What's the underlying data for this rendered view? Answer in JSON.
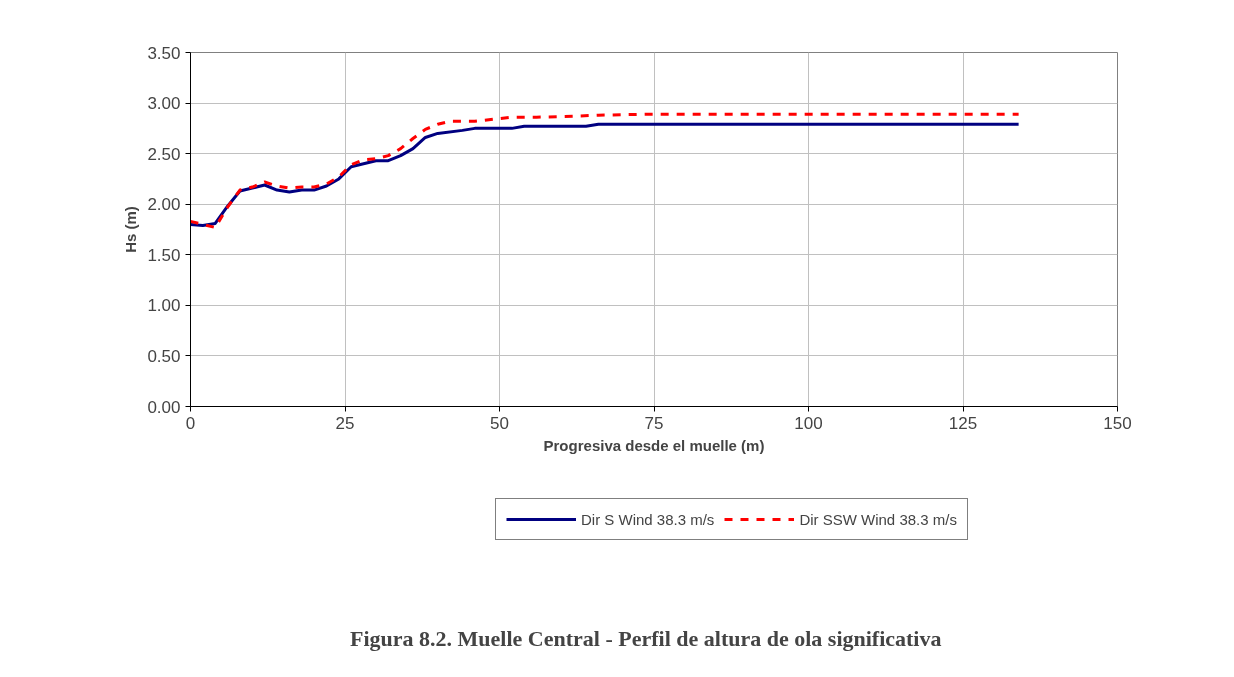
{
  "chart_data": {
    "type": "line",
    "xlabel": "Progresiva desde el muelle (m)",
    "ylabel": "Hs (m)",
    "xlim": [
      0,
      150
    ],
    "xticks": [
      0,
      25,
      50,
      75,
      100,
      125,
      150
    ],
    "ylim": [
      0,
      3.5
    ],
    "yticks": [
      {
        "value": 0,
        "label": "0.00"
      },
      {
        "value": 0.5,
        "label": "0.50"
      },
      {
        "value": 1,
        "label": "1.00"
      },
      {
        "value": 1.5,
        "label": "1.50"
      },
      {
        "value": 2,
        "label": "2.00"
      },
      {
        "value": 2.5,
        "label": "2.50"
      },
      {
        "value": 3,
        "label": "3.00"
      },
      {
        "value": 3.5,
        "label": "3.50"
      }
    ],
    "grid": true,
    "legend": "bottom",
    "marker": "none",
    "series": [
      {
        "name": "Dir S Wind 38.3 m/s",
        "color": "#000080",
        "line_style": "solid",
        "x": [
          0,
          2,
          4,
          6,
          8,
          10,
          12,
          14,
          16,
          18,
          20,
          22,
          24,
          26,
          28,
          30,
          32,
          34,
          36,
          38,
          40,
          44,
          46,
          52,
          54,
          64,
          66,
          134
        ],
        "values": [
          1.8,
          1.79,
          1.81,
          1.98,
          2.13,
          2.16,
          2.19,
          2.14,
          2.12,
          2.14,
          2.14,
          2.18,
          2.25,
          2.37,
          2.4,
          2.43,
          2.43,
          2.48,
          2.55,
          2.66,
          2.7,
          2.73,
          2.75,
          2.75,
          2.77,
          2.77,
          2.79,
          2.79
        ]
      },
      {
        "name": "Dir SSW Wind 38.3 m/s",
        "color": "#ff0000",
        "line_style": "dashed",
        "x": [
          0,
          2,
          4,
          6,
          8,
          10,
          12,
          14,
          16,
          18,
          20,
          22,
          24,
          26,
          28,
          30,
          32,
          34,
          36,
          38,
          40,
          42,
          46,
          52,
          56,
          62,
          66,
          74,
          134
        ],
        "values": [
          1.83,
          1.8,
          1.77,
          1.97,
          2.14,
          2.17,
          2.22,
          2.18,
          2.16,
          2.17,
          2.17,
          2.2,
          2.27,
          2.39,
          2.44,
          2.45,
          2.48,
          2.55,
          2.65,
          2.74,
          2.79,
          2.82,
          2.82,
          2.86,
          2.86,
          2.87,
          2.88,
          2.89,
          2.89
        ]
      }
    ],
    "annotations": [
      "Figura 8.2.  Muelle Central  -  Perfil de altura de ola significativa"
    ]
  }
}
